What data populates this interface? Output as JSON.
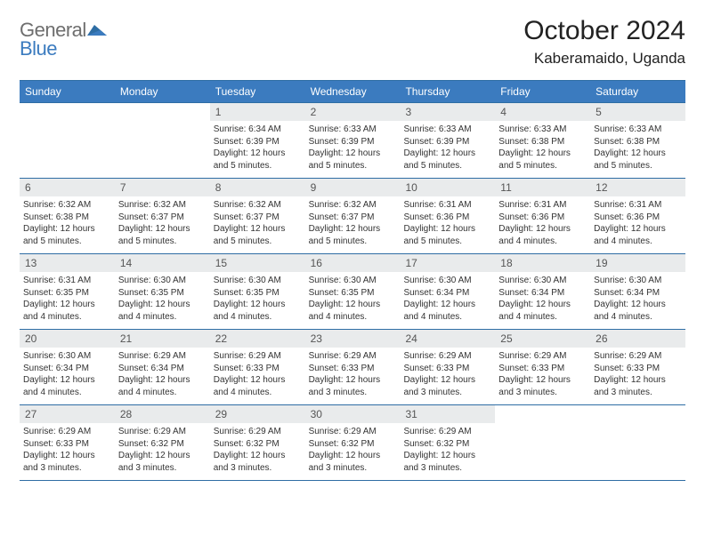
{
  "logo": {
    "top": "General",
    "bottom": "Blue"
  },
  "title": "October 2024",
  "location": "Kaberamaido, Uganda",
  "colors": {
    "header_bg": "#3b7bbf",
    "header_text": "#ffffff",
    "rule": "#2e6da4",
    "daynum_bg": "#e9ebec",
    "logo_gray": "#6e6e6e",
    "logo_blue": "#3b7bbf"
  },
  "dow": [
    "Sunday",
    "Monday",
    "Tuesday",
    "Wednesday",
    "Thursday",
    "Friday",
    "Saturday"
  ],
  "weeks": [
    [
      {
        "n": "",
        "sr": "",
        "ss": "",
        "dl": ""
      },
      {
        "n": "",
        "sr": "",
        "ss": "",
        "dl": ""
      },
      {
        "n": "1",
        "sr": "Sunrise: 6:34 AM",
        "ss": "Sunset: 6:39 PM",
        "dl": "Daylight: 12 hours and 5 minutes."
      },
      {
        "n": "2",
        "sr": "Sunrise: 6:33 AM",
        "ss": "Sunset: 6:39 PM",
        "dl": "Daylight: 12 hours and 5 minutes."
      },
      {
        "n": "3",
        "sr": "Sunrise: 6:33 AM",
        "ss": "Sunset: 6:39 PM",
        "dl": "Daylight: 12 hours and 5 minutes."
      },
      {
        "n": "4",
        "sr": "Sunrise: 6:33 AM",
        "ss": "Sunset: 6:38 PM",
        "dl": "Daylight: 12 hours and 5 minutes."
      },
      {
        "n": "5",
        "sr": "Sunrise: 6:33 AM",
        "ss": "Sunset: 6:38 PM",
        "dl": "Daylight: 12 hours and 5 minutes."
      }
    ],
    [
      {
        "n": "6",
        "sr": "Sunrise: 6:32 AM",
        "ss": "Sunset: 6:38 PM",
        "dl": "Daylight: 12 hours and 5 minutes."
      },
      {
        "n": "7",
        "sr": "Sunrise: 6:32 AM",
        "ss": "Sunset: 6:37 PM",
        "dl": "Daylight: 12 hours and 5 minutes."
      },
      {
        "n": "8",
        "sr": "Sunrise: 6:32 AM",
        "ss": "Sunset: 6:37 PM",
        "dl": "Daylight: 12 hours and 5 minutes."
      },
      {
        "n": "9",
        "sr": "Sunrise: 6:32 AM",
        "ss": "Sunset: 6:37 PM",
        "dl": "Daylight: 12 hours and 5 minutes."
      },
      {
        "n": "10",
        "sr": "Sunrise: 6:31 AM",
        "ss": "Sunset: 6:36 PM",
        "dl": "Daylight: 12 hours and 5 minutes."
      },
      {
        "n": "11",
        "sr": "Sunrise: 6:31 AM",
        "ss": "Sunset: 6:36 PM",
        "dl": "Daylight: 12 hours and 4 minutes."
      },
      {
        "n": "12",
        "sr": "Sunrise: 6:31 AM",
        "ss": "Sunset: 6:36 PM",
        "dl": "Daylight: 12 hours and 4 minutes."
      }
    ],
    [
      {
        "n": "13",
        "sr": "Sunrise: 6:31 AM",
        "ss": "Sunset: 6:35 PM",
        "dl": "Daylight: 12 hours and 4 minutes."
      },
      {
        "n": "14",
        "sr": "Sunrise: 6:30 AM",
        "ss": "Sunset: 6:35 PM",
        "dl": "Daylight: 12 hours and 4 minutes."
      },
      {
        "n": "15",
        "sr": "Sunrise: 6:30 AM",
        "ss": "Sunset: 6:35 PM",
        "dl": "Daylight: 12 hours and 4 minutes."
      },
      {
        "n": "16",
        "sr": "Sunrise: 6:30 AM",
        "ss": "Sunset: 6:35 PM",
        "dl": "Daylight: 12 hours and 4 minutes."
      },
      {
        "n": "17",
        "sr": "Sunrise: 6:30 AM",
        "ss": "Sunset: 6:34 PM",
        "dl": "Daylight: 12 hours and 4 minutes."
      },
      {
        "n": "18",
        "sr": "Sunrise: 6:30 AM",
        "ss": "Sunset: 6:34 PM",
        "dl": "Daylight: 12 hours and 4 minutes."
      },
      {
        "n": "19",
        "sr": "Sunrise: 6:30 AM",
        "ss": "Sunset: 6:34 PM",
        "dl": "Daylight: 12 hours and 4 minutes."
      }
    ],
    [
      {
        "n": "20",
        "sr": "Sunrise: 6:30 AM",
        "ss": "Sunset: 6:34 PM",
        "dl": "Daylight: 12 hours and 4 minutes."
      },
      {
        "n": "21",
        "sr": "Sunrise: 6:29 AM",
        "ss": "Sunset: 6:34 PM",
        "dl": "Daylight: 12 hours and 4 minutes."
      },
      {
        "n": "22",
        "sr": "Sunrise: 6:29 AM",
        "ss": "Sunset: 6:33 PM",
        "dl": "Daylight: 12 hours and 4 minutes."
      },
      {
        "n": "23",
        "sr": "Sunrise: 6:29 AM",
        "ss": "Sunset: 6:33 PM",
        "dl": "Daylight: 12 hours and 3 minutes."
      },
      {
        "n": "24",
        "sr": "Sunrise: 6:29 AM",
        "ss": "Sunset: 6:33 PM",
        "dl": "Daylight: 12 hours and 3 minutes."
      },
      {
        "n": "25",
        "sr": "Sunrise: 6:29 AM",
        "ss": "Sunset: 6:33 PM",
        "dl": "Daylight: 12 hours and 3 minutes."
      },
      {
        "n": "26",
        "sr": "Sunrise: 6:29 AM",
        "ss": "Sunset: 6:33 PM",
        "dl": "Daylight: 12 hours and 3 minutes."
      }
    ],
    [
      {
        "n": "27",
        "sr": "Sunrise: 6:29 AM",
        "ss": "Sunset: 6:33 PM",
        "dl": "Daylight: 12 hours and 3 minutes."
      },
      {
        "n": "28",
        "sr": "Sunrise: 6:29 AM",
        "ss": "Sunset: 6:32 PM",
        "dl": "Daylight: 12 hours and 3 minutes."
      },
      {
        "n": "29",
        "sr": "Sunrise: 6:29 AM",
        "ss": "Sunset: 6:32 PM",
        "dl": "Daylight: 12 hours and 3 minutes."
      },
      {
        "n": "30",
        "sr": "Sunrise: 6:29 AM",
        "ss": "Sunset: 6:32 PM",
        "dl": "Daylight: 12 hours and 3 minutes."
      },
      {
        "n": "31",
        "sr": "Sunrise: 6:29 AM",
        "ss": "Sunset: 6:32 PM",
        "dl": "Daylight: 12 hours and 3 minutes."
      },
      {
        "n": "",
        "sr": "",
        "ss": "",
        "dl": ""
      },
      {
        "n": "",
        "sr": "",
        "ss": "",
        "dl": ""
      }
    ]
  ]
}
